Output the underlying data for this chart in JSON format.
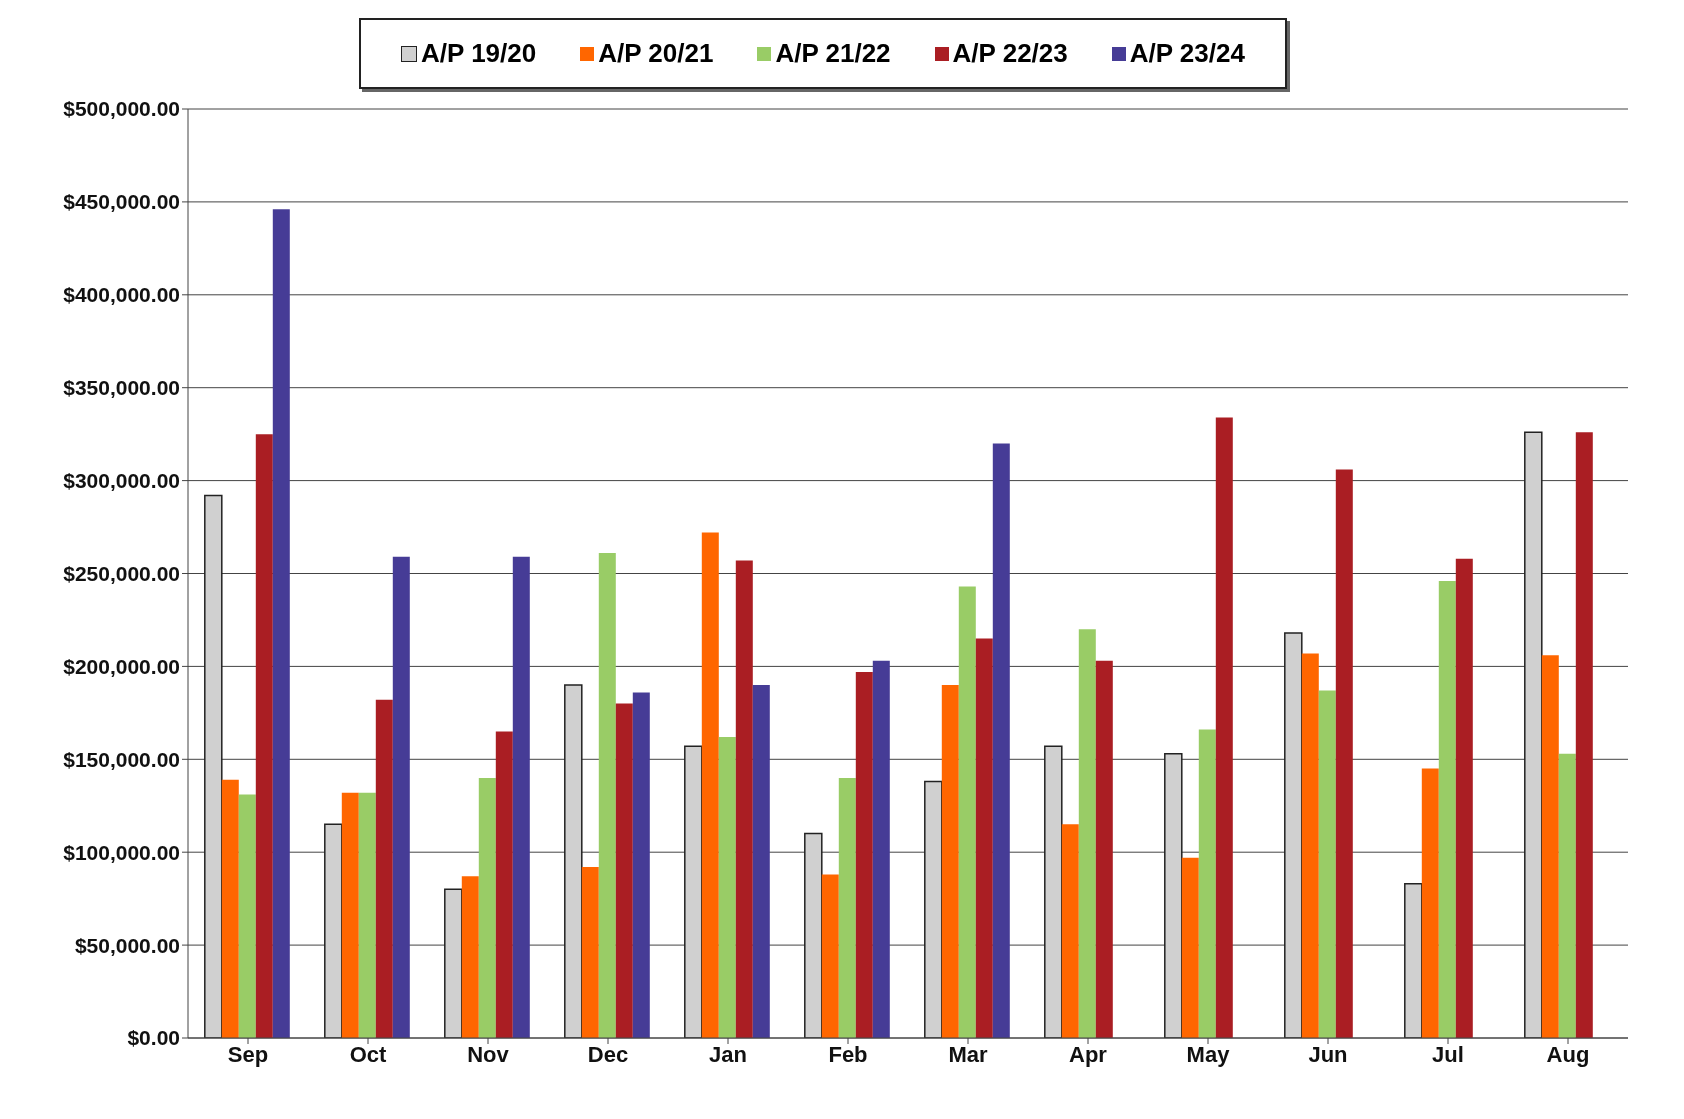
{
  "chart_data": {
    "type": "bar",
    "categories": [
      "Sep",
      "Oct",
      "Nov",
      "Dec",
      "Jan",
      "Feb",
      "Mar",
      "Apr",
      "May",
      "Jun",
      "Jul",
      "Aug"
    ],
    "series": [
      {
        "name": "A/P 19/20",
        "color": "#d0d0d0",
        "values": [
          292000,
          115000,
          80000,
          190000,
          157000,
          110000,
          138000,
          157000,
          153000,
          218000,
          83000,
          326000
        ]
      },
      {
        "name": "A/P 20/21",
        "color": "#ff6600",
        "values": [
          139000,
          132000,
          87000,
          92000,
          272000,
          88000,
          190000,
          115000,
          97000,
          207000,
          145000,
          206000
        ]
      },
      {
        "name": "A/P 21/22",
        "color": "#99cc66",
        "values": [
          131000,
          132000,
          140000,
          261000,
          162000,
          140000,
          243000,
          220000,
          166000,
          187000,
          246000,
          153000
        ]
      },
      {
        "name": "A/P 22/23",
        "color": "#aa1e23",
        "values": [
          325000,
          182000,
          165000,
          180000,
          257000,
          197000,
          215000,
          203000,
          334000,
          306000,
          258000,
          326000
        ]
      },
      {
        "name": "A/P 23/24",
        "color": "#463c96",
        "values": [
          446000,
          259000,
          259000,
          186000,
          190000,
          203000,
          320000,
          null,
          null,
          null,
          null,
          null
        ]
      }
    ],
    "ylim": [
      0,
      500000
    ],
    "yticks": [
      {
        "value": 0,
        "label": "$0.00"
      },
      {
        "value": 50000,
        "label": "$50,000.00"
      },
      {
        "value": 100000,
        "label": "$100,000.00"
      },
      {
        "value": 150000,
        "label": "$150,000.00"
      },
      {
        "value": 200000,
        "label": "$200,000.00"
      },
      {
        "value": 250000,
        "label": "$250,000.00"
      },
      {
        "value": 300000,
        "label": "$300,000.00"
      },
      {
        "value": 350000,
        "label": "$350,000.00"
      },
      {
        "value": 400000,
        "label": "$400,000.00"
      },
      {
        "value": 450000,
        "label": "$450,000.00"
      },
      {
        "value": 500000,
        "label": "$500,000.00"
      }
    ],
    "grid": "y",
    "legend": "top"
  }
}
